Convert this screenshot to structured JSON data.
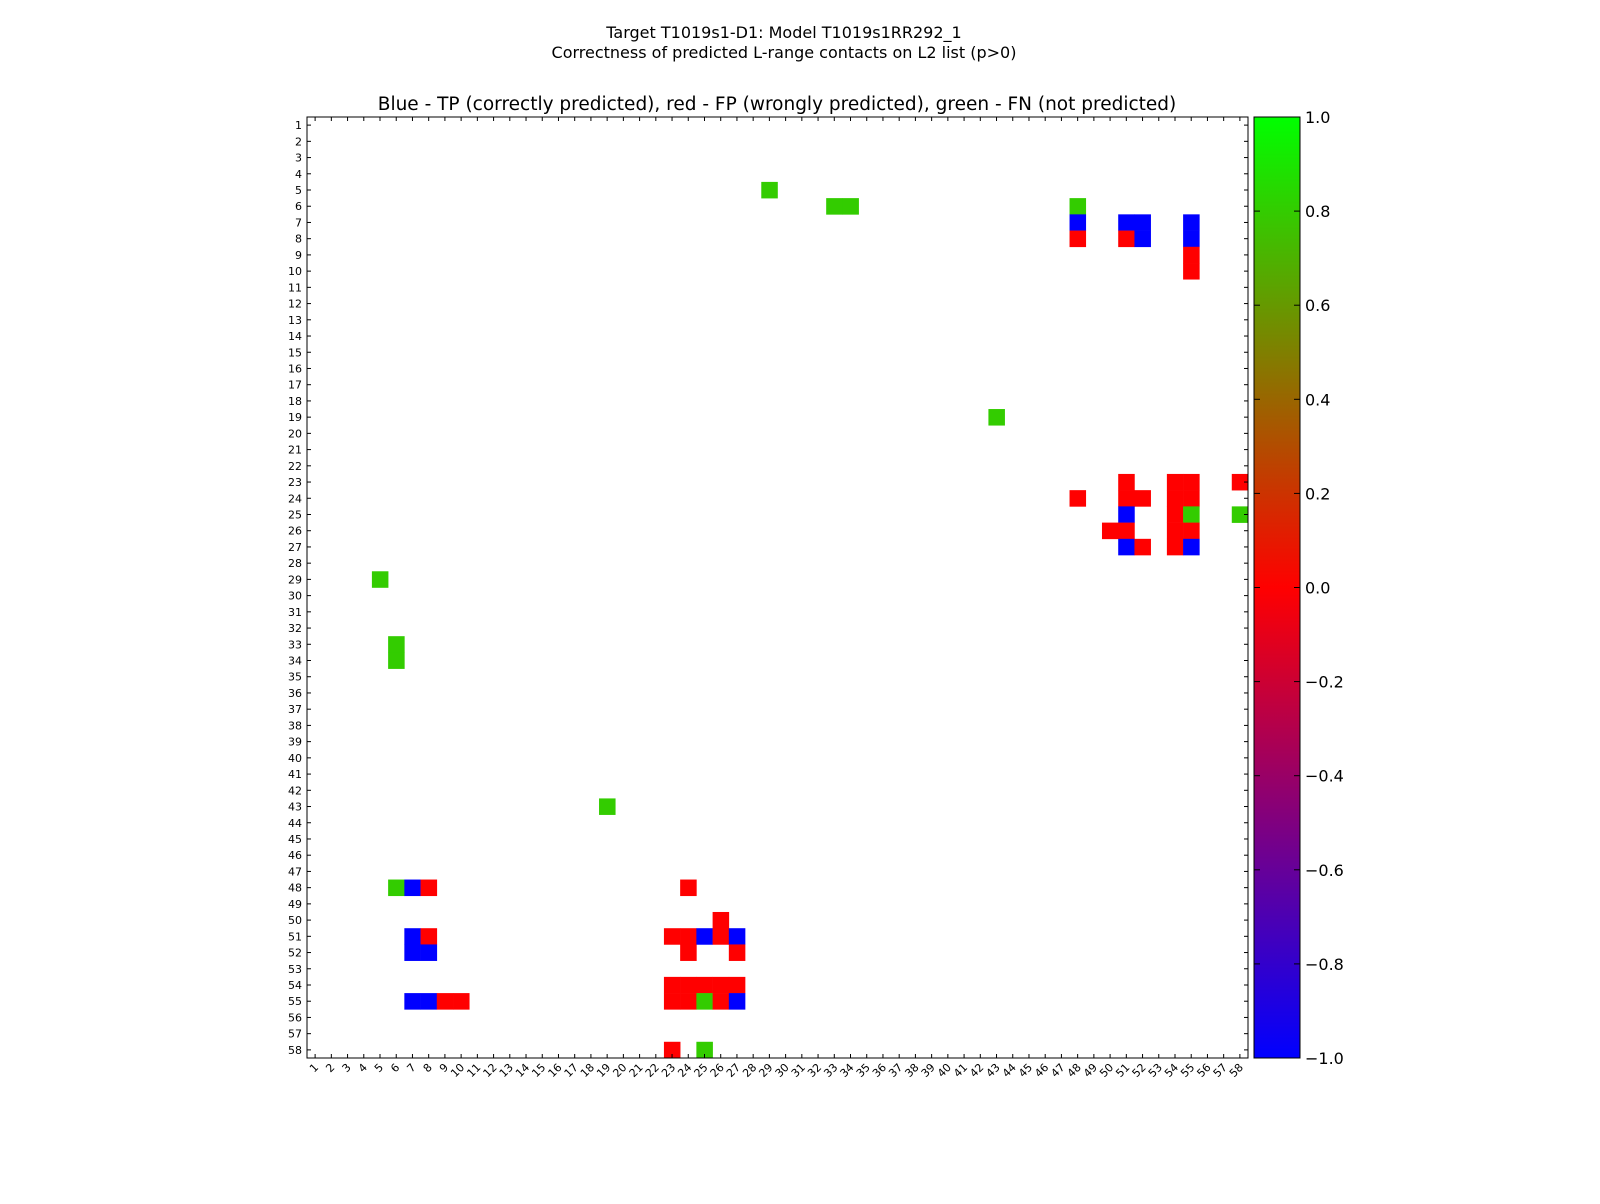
{
  "chart_data": {
    "type": "heatmap",
    "title": "Target T1019s1-D1: Model T1019s1RR292_1",
    "subtitle": "Correctness of predicted L-range contacts on L2 list (p>0)",
    "axes_title": "Blue - TP (correctly predicted), red - FP (wrongly predicted), green - FN (not predicted)",
    "n": 58,
    "xlim": [
      1,
      58
    ],
    "ylim": [
      1,
      58
    ],
    "colorbar": {
      "min": -1.0,
      "max": 1.0,
      "ticks": [
        "1.0",
        "0.8",
        "0.6",
        "0.4",
        "0.2",
        "0.0",
        "−0.2",
        "−0.4",
        "−0.6",
        "−0.8",
        "−1.0"
      ],
      "tick_values": [
        1.0,
        0.8,
        0.6,
        0.4,
        0.2,
        0.0,
        -0.2,
        -0.4,
        -0.6,
        -0.8,
        -1.0
      ]
    },
    "colors": {
      "TP": "#0000ff",
      "FP": "#ff0000",
      "FN": "#33cc00"
    },
    "cells": [
      {
        "row": 5,
        "col": 29,
        "type": "FN"
      },
      {
        "row": 6,
        "col": 33,
        "type": "FN"
      },
      {
        "row": 6,
        "col": 34,
        "type": "FN"
      },
      {
        "row": 6,
        "col": 48,
        "type": "FN"
      },
      {
        "row": 7,
        "col": 48,
        "type": "TP"
      },
      {
        "row": 7,
        "col": 51,
        "type": "TP"
      },
      {
        "row": 7,
        "col": 52,
        "type": "TP"
      },
      {
        "row": 7,
        "col": 55,
        "type": "TP"
      },
      {
        "row": 8,
        "col": 48,
        "type": "FP"
      },
      {
        "row": 8,
        "col": 51,
        "type": "FP"
      },
      {
        "row": 8,
        "col": 52,
        "type": "TP"
      },
      {
        "row": 8,
        "col": 55,
        "type": "TP"
      },
      {
        "row": 9,
        "col": 55,
        "type": "FP"
      },
      {
        "row": 10,
        "col": 55,
        "type": "FP"
      },
      {
        "row": 19,
        "col": 43,
        "type": "FN"
      },
      {
        "row": 23,
        "col": 51,
        "type": "FP"
      },
      {
        "row": 23,
        "col": 54,
        "type": "FP"
      },
      {
        "row": 23,
        "col": 55,
        "type": "FP"
      },
      {
        "row": 23,
        "col": 58,
        "type": "FP"
      },
      {
        "row": 24,
        "col": 48,
        "type": "FP"
      },
      {
        "row": 24,
        "col": 51,
        "type": "FP"
      },
      {
        "row": 24,
        "col": 52,
        "type": "FP"
      },
      {
        "row": 24,
        "col": 54,
        "type": "FP"
      },
      {
        "row": 24,
        "col": 55,
        "type": "FP"
      },
      {
        "row": 25,
        "col": 51,
        "type": "TP"
      },
      {
        "row": 25,
        "col": 54,
        "type": "FP"
      },
      {
        "row": 25,
        "col": 55,
        "type": "FN"
      },
      {
        "row": 25,
        "col": 58,
        "type": "FN"
      },
      {
        "row": 26,
        "col": 50,
        "type": "FP"
      },
      {
        "row": 26,
        "col": 51,
        "type": "FP"
      },
      {
        "row": 26,
        "col": 54,
        "type": "FP"
      },
      {
        "row": 26,
        "col": 55,
        "type": "FP"
      },
      {
        "row": 27,
        "col": 51,
        "type": "TP"
      },
      {
        "row": 27,
        "col": 52,
        "type": "FP"
      },
      {
        "row": 27,
        "col": 54,
        "type": "FP"
      },
      {
        "row": 27,
        "col": 55,
        "type": "TP"
      },
      {
        "row": 29,
        "col": 5,
        "type": "FN"
      },
      {
        "row": 33,
        "col": 6,
        "type": "FN"
      },
      {
        "row": 34,
        "col": 6,
        "type": "FN"
      },
      {
        "row": 43,
        "col": 19,
        "type": "FN"
      },
      {
        "row": 48,
        "col": 6,
        "type": "FN"
      },
      {
        "row": 48,
        "col": 7,
        "type": "TP"
      },
      {
        "row": 48,
        "col": 8,
        "type": "FP"
      },
      {
        "row": 48,
        "col": 24,
        "type": "FP"
      },
      {
        "row": 50,
        "col": 26,
        "type": "FP"
      },
      {
        "row": 51,
        "col": 7,
        "type": "TP"
      },
      {
        "row": 51,
        "col": 8,
        "type": "FP"
      },
      {
        "row": 51,
        "col": 23,
        "type": "FP"
      },
      {
        "row": 51,
        "col": 24,
        "type": "FP"
      },
      {
        "row": 51,
        "col": 25,
        "type": "TP"
      },
      {
        "row": 51,
        "col": 26,
        "type": "FP"
      },
      {
        "row": 51,
        "col": 27,
        "type": "TP"
      },
      {
        "row": 52,
        "col": 7,
        "type": "TP"
      },
      {
        "row": 52,
        "col": 8,
        "type": "TP"
      },
      {
        "row": 52,
        "col": 24,
        "type": "FP"
      },
      {
        "row": 52,
        "col": 27,
        "type": "FP"
      },
      {
        "row": 54,
        "col": 23,
        "type": "FP"
      },
      {
        "row": 54,
        "col": 24,
        "type": "FP"
      },
      {
        "row": 54,
        "col": 25,
        "type": "FP"
      },
      {
        "row": 54,
        "col": 26,
        "type": "FP"
      },
      {
        "row": 54,
        "col": 27,
        "type": "FP"
      },
      {
        "row": 55,
        "col": 7,
        "type": "TP"
      },
      {
        "row": 55,
        "col": 8,
        "type": "TP"
      },
      {
        "row": 55,
        "col": 9,
        "type": "FP"
      },
      {
        "row": 55,
        "col": 10,
        "type": "FP"
      },
      {
        "row": 55,
        "col": 23,
        "type": "FP"
      },
      {
        "row": 55,
        "col": 24,
        "type": "FP"
      },
      {
        "row": 55,
        "col": 25,
        "type": "FN"
      },
      {
        "row": 55,
        "col": 26,
        "type": "FP"
      },
      {
        "row": 55,
        "col": 27,
        "type": "TP"
      },
      {
        "row": 58,
        "col": 23,
        "type": "FP"
      },
      {
        "row": 58,
        "col": 25,
        "type": "FN"
      }
    ]
  }
}
